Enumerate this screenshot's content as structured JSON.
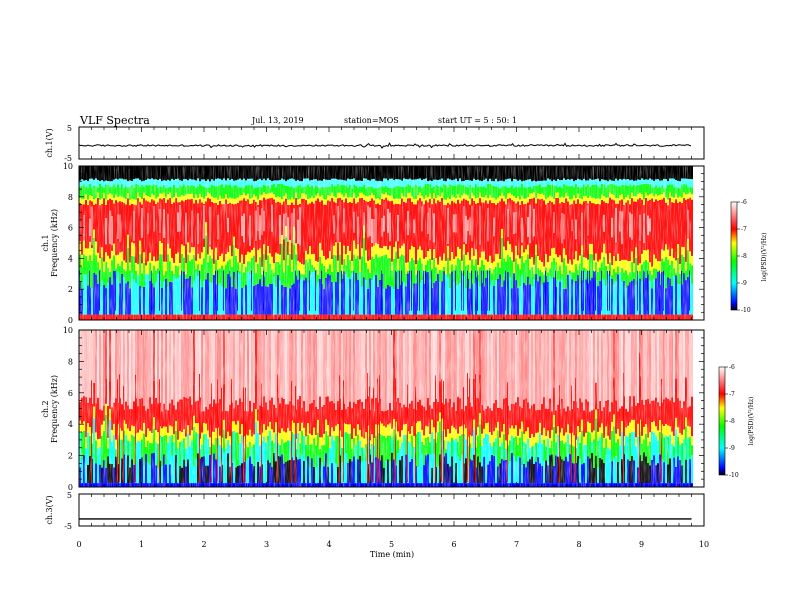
{
  "header": {
    "title": "VLF Spectra",
    "date": "Jul. 13, 2019",
    "station": "station=MOS",
    "start_time": "start UT = 5 : 50: 1"
  },
  "chart_data": [
    {
      "type": "line",
      "panel": "ch1_waveform",
      "ylabel": "ch.1(V)",
      "ylim": [
        -5,
        5
      ],
      "yticks": [
        "5",
        "-5"
      ],
      "xlim": [
        0,
        10
      ],
      "series": [
        {
          "values_description_mean": -0.8
        }
      ]
    },
    {
      "type": "heatmap",
      "panel": "ch1_spectrogram",
      "ylabel": "ch.1\nFrequency (kHz)",
      "ylabel_line1": "ch.1",
      "ylabel_line2": "Frequency (kHz)",
      "ylim": [
        0,
        10
      ],
      "yticks": [
        "0",
        "2",
        "4",
        "6",
        "8",
        "10"
      ],
      "xlim": [
        0,
        9.8
      ],
      "colorbar": {
        "label": "log(PSD)(V²/Hz)",
        "ticks": [
          "-6",
          "-7",
          "-8",
          "-9",
          "-10"
        ],
        "range": [
          -10,
          -6
        ]
      },
      "saturated_band_khz": [
        9.1,
        10
      ]
    },
    {
      "type": "heatmap",
      "panel": "ch2_spectrogram",
      "ylabel_line1": "ch.2",
      "ylabel_line2": "Frequency (kHz)",
      "ylim": [
        0,
        10
      ],
      "yticks": [
        "0",
        "2",
        "4",
        "6",
        "8",
        "10"
      ],
      "xlim": [
        0,
        9.8
      ],
      "colorbar": {
        "label": "log(PSD)(V²/Hz)",
        "ticks": [
          "-6",
          "-7",
          "-8",
          "-9",
          "-10"
        ],
        "range": [
          -10,
          -6
        ]
      }
    },
    {
      "type": "line",
      "panel": "ch3_waveform",
      "ylabel": "ch.3(V)",
      "ylim": [
        -5,
        5
      ],
      "yticks": [
        "5",
        "-5"
      ],
      "xlim": [
        0,
        10
      ],
      "series": [
        {
          "constant": -2.8
        }
      ]
    }
  ],
  "xaxis": {
    "label": "Time (min)",
    "ticks": [
      "0",
      "1",
      "2",
      "3",
      "4",
      "5",
      "6",
      "7",
      "8",
      "9",
      "10"
    ]
  },
  "colors": {
    "saturated": "#000000",
    "high": "#ff0000",
    "mid": "#ffff00",
    "low": "#00ff00",
    "lower": "#00ffff",
    "lowest": "#0000ff"
  }
}
